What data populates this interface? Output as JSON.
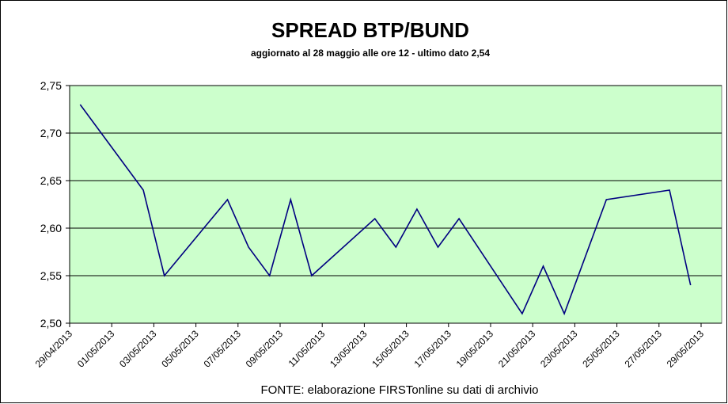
{
  "chart_data": {
    "type": "line",
    "title": "SPREAD  BTP/BUND",
    "subtitle": "aggiornato al 28 maggio alle ore 12 -  ultimo dato 2,54",
    "source": "FONTE: elaborazione FIRSTonline su dati di archivio",
    "x": [
      "29/04/2013",
      "02/05/2013",
      "03/05/2013",
      "06/05/2013",
      "07/05/2013",
      "08/05/2013",
      "09/05/2013",
      "10/05/2013",
      "13/05/2013",
      "14/05/2013",
      "15/05/2013",
      "16/05/2013",
      "17/05/2013",
      "20/05/2013",
      "21/05/2013",
      "22/05/2013",
      "24/05/2013",
      "27/05/2013",
      "28/05/2013"
    ],
    "series": [
      {
        "name": "Spread",
        "color": "#000080",
        "values": [
          2.73,
          2.64,
          2.55,
          2.63,
          2.58,
          2.55,
          2.63,
          2.55,
          2.61,
          2.58,
          2.62,
          2.58,
          2.61,
          2.51,
          2.56,
          2.51,
          2.63,
          2.64,
          2.54
        ]
      }
    ],
    "xlim": [
      "29/04/2013",
      "29/05/2013"
    ],
    "xticks": [
      "29/04/2013",
      "01/05/2013",
      "03/05/2013",
      "05/05/2013",
      "07/05/2013",
      "09/05/2013",
      "11/05/2013",
      "13/05/2013",
      "15/05/2013",
      "17/05/2013",
      "19/05/2013",
      "21/05/2013",
      "23/05/2013",
      "25/05/2013",
      "27/05/2013",
      "29/05/2013"
    ],
    "ylim": [
      2.5,
      2.75
    ],
    "yticks": [
      {
        "value": 2.5,
        "label": "2,50"
      },
      {
        "value": 2.55,
        "label": "2,55"
      },
      {
        "value": 2.6,
        "label": "2,60"
      },
      {
        "value": 2.65,
        "label": "2,65"
      },
      {
        "value": 2.7,
        "label": "2,70"
      },
      {
        "value": 2.75,
        "label": "2,75"
      }
    ],
    "grid": true,
    "plot_background": "#ccffcc"
  }
}
